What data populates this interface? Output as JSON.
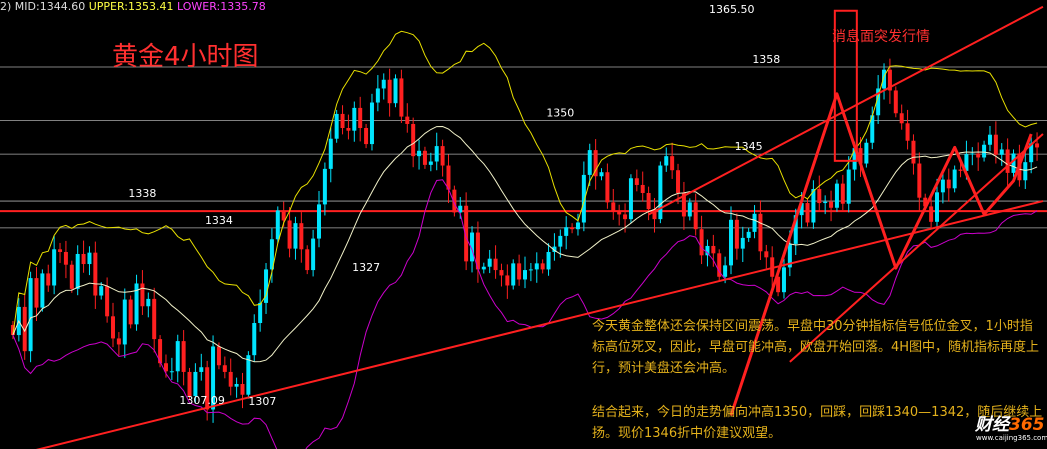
{
  "header": {
    "prefix": "2)",
    "mid": "MID:1344.60",
    "upper": "UPPER:1353.41",
    "lower": "LOWER:1335.78"
  },
  "title": "黄金4小时图",
  "annotation": "消息面突发行情",
  "commentary": {
    "p1": "今天黄金整体还会保持区间震荡。早盘中30分钟指标信号低位金叉，1小时指标高位死叉，因此，早盘可能冲高，欧盘开始回落。4H图中，随机指标再度上行，预计美盘还会冲高。",
    "p2": "结合起来，今日的走势偏向冲高1350，回踩，回踩1340—1342，随后继续上扬。现价1346折中价建议观望。"
  },
  "logo": {
    "text_a": "财经",
    "text_b": "365",
    "url": "www.caijing365.com"
  },
  "colors": {
    "background": "#000000",
    "bull": "#00e5ff",
    "bear": "#ff2020",
    "upper_band": "#e8e000",
    "mid_band": "#f0f0c8",
    "lower_band": "#cc00cc",
    "trend": "#ff2020",
    "level": "#d8d8d8"
  },
  "chart_data": {
    "type": "candlestick",
    "instrument": "黄金",
    "timeframe": "4小时",
    "y_range": [
      1301,
      1368
    ],
    "indicator": {
      "name": "Bollinger Bands",
      "mid": 1344.6,
      "upper": 1353.41,
      "lower": 1335.78
    },
    "levels": [
      {
        "price": 1358,
        "label": "1358"
      },
      {
        "price": 1350,
        "label": "1350"
      },
      {
        "price": 1345,
        "label": "1345"
      },
      {
        "price": 1338,
        "label": "1338"
      },
      {
        "price": 1334,
        "label": "1334"
      }
    ],
    "key_resistance": 1336.5,
    "marks": [
      {
        "label": "1365.50",
        "value": 1365.5,
        "type": "high"
      },
      {
        "label": "1327",
        "value": 1327,
        "type": "level"
      },
      {
        "label": "1307.09",
        "value": 1307.09,
        "type": "low"
      },
      {
        "label": "1307",
        "value": 1307,
        "type": "level"
      }
    ],
    "channel": [
      {
        "name": "lower",
        "from": [
          0,
          1300
        ],
        "to": [
          175,
          1338
        ]
      },
      {
        "name": "upper",
        "from": [
          108,
          1336
        ],
        "to": [
          175,
          1367
        ]
      },
      {
        "name": "support",
        "from": [
          132,
          1314
        ],
        "to": [
          175,
          1348
        ]
      }
    ],
    "candles_count": 175,
    "closes": [
      1318,
      1322.2,
      1315.6,
      1326.5,
      1322.1,
      1327.2,
      1325.4,
      1330.8,
      1330.4,
      1328.5,
      1324.9,
      1330.1,
      1328.6,
      1330.3,
      1323.9,
      1325.3,
      1320.8,
      1317.5,
      1316.6,
      1323.3,
      1319.6,
      1325.7,
      1322.3,
      1323.4,
      1317.4,
      1313.8,
      1312.6,
      1312.6,
      1317.1,
      1312.5,
      1308.9,
      1312.5,
      1313.2,
      1306.9,
      1316.3,
      1313.5,
      1312.5,
      1310.3,
      1310.7,
      1309.1,
      1315,
      1319.8,
      1322.8,
      1327.8,
      1332.3,
      1336.6,
      1335.1,
      1330.9,
      1334.7,
      1330.8,
      1327.7,
      1332.4,
      1337.5,
      1342.8,
      1347.3,
      1351,
      1348.9,
      1348.5,
      1351.9,
      1348.9,
      1346.5,
      1352.7,
      1354.8,
      1356.1,
      1352.6,
      1356.3,
      1350.6,
      1349.5,
      1344.7,
      1345.5,
      1343.4,
      1343.9,
      1346.2,
      1343.3,
      1339.7,
      1336.3,
      1337.3,
      1329,
      1333.3,
      1327.8,
      1328.2,
      1329.4,
      1327.7,
      1326.9,
      1325.4,
      1328.7,
      1326.3,
      1327.7,
      1327.8,
      1328.7,
      1327.8,
      1330.4,
      1331.2,
      1332.8,
      1334.1,
      1333.8,
      1334.8,
      1341.9,
      1345.6,
      1341.7,
      1342.3,
      1337.8,
      1336.5,
      1336,
      1335.3,
      1341.4,
      1340.4,
      1339.2,
      1336.8,
      1335.3,
      1343.3,
      1344.7,
      1342.6,
      1339.2,
      1335.7,
      1337.8,
      1333.8,
      1329.9,
      1331.3,
      1330.2,
      1326.7,
      1328.4,
      1335.2,
      1330.9,
      1332.5,
      1333.4,
      1336.1,
      1330.5,
      1329.6,
      1326.7,
      1324.4,
      1328.1,
      1331.6,
      1335.9,
      1337.7,
      1334.8,
      1339.8,
      1337.7,
      1337.9,
      1337,
      1340.6,
      1337.6,
      1342.7,
      1345.9,
      1343.6,
      1346.7,
      1350.8,
      1354.8,
      1357.6,
      1354.5,
      1351.1,
      1349.6,
      1347,
      1343.6,
      1338.5,
      1337.2,
      1334.9,
      1339.3,
      1341.2,
      1339.9,
      1342.7,
      1342.5,
      1345,
      1345.1,
      1344.5,
      1346.4,
      1347.9,
      1344.9,
      1345.7,
      1342.2,
      1345.1,
      1341.1,
      1343.8,
      1346.6,
      1346
    ]
  }
}
